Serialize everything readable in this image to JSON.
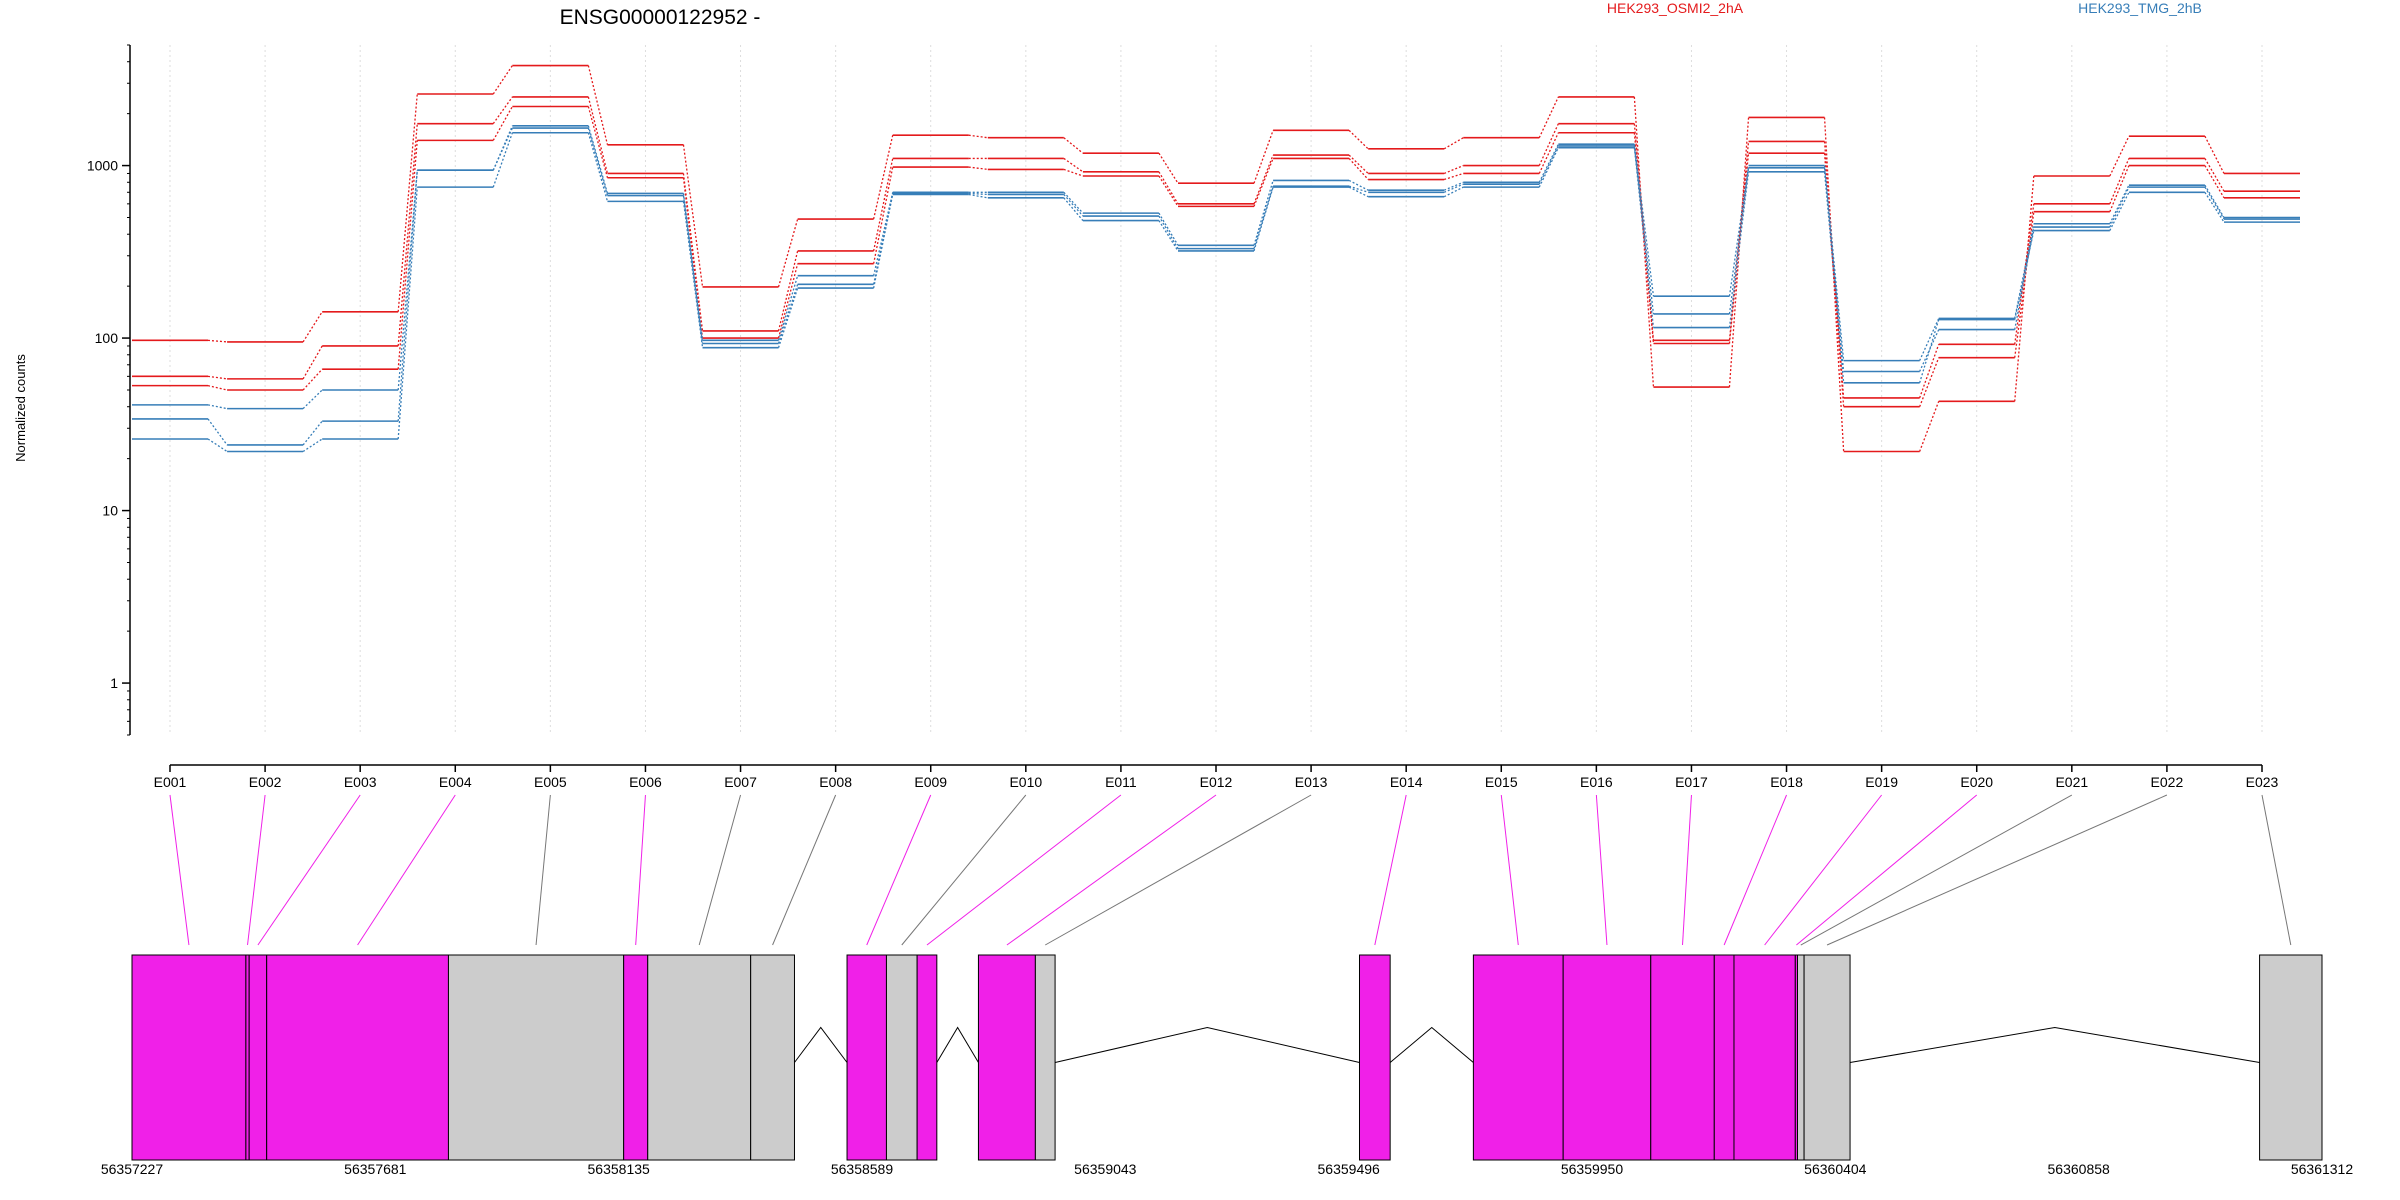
{
  "chart_data": {
    "type": "line",
    "title": "ENSG00000122952 -",
    "ylabel": "Normalized counts",
    "yscale": "log",
    "ylim": [
      0.5,
      5000
    ],
    "yticks": [
      1,
      10,
      100,
      1000
    ],
    "yticklabels": [
      "1",
      "10",
      "100",
      "1000"
    ],
    "categories": [
      "E001",
      "E002",
      "E003",
      "E004",
      "E005",
      "E006",
      "E007",
      "E008",
      "E009",
      "E010",
      "E011",
      "E012",
      "E013",
      "E014",
      "E015",
      "E016",
      "E017",
      "E018",
      "E019",
      "E020",
      "E021",
      "E022",
      "E023"
    ],
    "grid": true,
    "legend": [
      {
        "name": "HEK293_OSMI2_2hA",
        "color": "#e41a1c"
      },
      {
        "name": "HEK293_TMG_2hB",
        "color": "#377eb8"
      }
    ],
    "series": [
      {
        "group": "HEK293_OSMI2_2hA",
        "color": "#e41a1c",
        "values": [
          97,
          95,
          142,
          2600,
          3800,
          1320,
          198,
          490,
          1500,
          1450,
          1180,
          790,
          1600,
          1250,
          1450,
          2500,
          52,
          1900,
          22,
          43,
          870,
          1480,
          900
        ]
      },
      {
        "group": "HEK293_OSMI2_2hA",
        "color": "#e41a1c",
        "values": [
          60,
          58,
          90,
          1750,
          2500,
          900,
          110,
          320,
          1100,
          1100,
          920,
          600,
          1150,
          900,
          1000,
          1750,
          97,
          1380,
          45,
          92,
          600,
          1100,
          710
        ]
      },
      {
        "group": "HEK293_OSMI2_2hA",
        "color": "#e41a1c",
        "values": [
          53,
          50,
          66,
          1400,
          2200,
          850,
          100,
          270,
          980,
          950,
          870,
          580,
          1100,
          830,
          900,
          1550,
          93,
          1180,
          40,
          77,
          540,
          1000,
          650
        ]
      },
      {
        "group": "HEK293_TMG_2hB",
        "color": "#377eb8",
        "values": [
          41,
          39,
          50,
          940,
          1700,
          690,
          97,
          230,
          700,
          700,
          530,
          345,
          820,
          720,
          800,
          1330,
          175,
          1000,
          74,
          130,
          460,
          770,
          500
        ]
      },
      {
        "group": "HEK293_TMG_2hB",
        "color": "#377eb8",
        "values": [
          34,
          24,
          33,
          940,
          1650,
          670,
          93,
          205,
          690,
          680,
          510,
          330,
          760,
          700,
          780,
          1300,
          138,
          970,
          64,
          112,
          440,
          750,
          490
        ]
      },
      {
        "group": "HEK293_TMG_2hB",
        "color": "#377eb8",
        "values": [
          26,
          22,
          26,
          750,
          1550,
          620,
          88,
          195,
          680,
          650,
          480,
          320,
          750,
          660,
          750,
          1270,
          115,
          920,
          55,
          128,
          420,
          700,
          470
        ]
      }
    ],
    "gene_model": {
      "xlabels": [
        "56357227",
        "56357681",
        "56358135",
        "56358589",
        "56359043",
        "56359496",
        "56359950",
        "56360404",
        "56360858",
        "56361312"
      ],
      "highlight_color": "#f020e8",
      "other_color": "#cccccc",
      "exon_highlighted": [
        true,
        true,
        true,
        true,
        false,
        true,
        false,
        false,
        true,
        false,
        true,
        true,
        false,
        true,
        true,
        true,
        true,
        true,
        true,
        true,
        false,
        false,
        false
      ]
    }
  }
}
